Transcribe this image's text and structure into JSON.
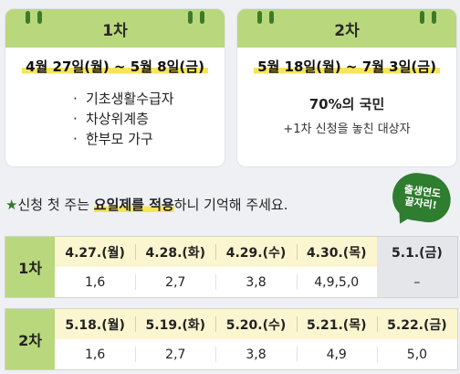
{
  "round1": {
    "title": "1차",
    "period": "4월 27일(월) ~ 5월 8일(금)",
    "targets": [
      "기초생활수급자",
      "차상위계층",
      "한부모 가구"
    ]
  },
  "round2": {
    "title": "2차",
    "period": "5월 18일(월) ~ 7월 3일(금)",
    "target_main": "70%의 국민",
    "target_sub": "+1차 신청을 놓친 대상자"
  },
  "notice": {
    "star": "★",
    "text_a": "신청 첫 주는 ",
    "text_b": "요일제를 적용",
    "text_c": "하니 기억해 주세요."
  },
  "badge": {
    "line1": "출생연도",
    "line2": "끝자리!"
  },
  "schedule1": {
    "label": "1차",
    "days": [
      "4.27.(월)",
      "4.28.(화)",
      "4.29.(수)",
      "4.30.(목)",
      "5.1.(금)"
    ],
    "digits": [
      "1,6",
      "2,7",
      "3,8",
      "4,9,5,0",
      "–"
    ]
  },
  "schedule2": {
    "label": "2차",
    "days": [
      "5.18.(월)",
      "5.19.(화)",
      "5.20.(수)",
      "5.21.(목)",
      "5.22.(금)"
    ],
    "digits": [
      "1,6",
      "2,7",
      "3,8",
      "4,9",
      "5,0"
    ]
  }
}
